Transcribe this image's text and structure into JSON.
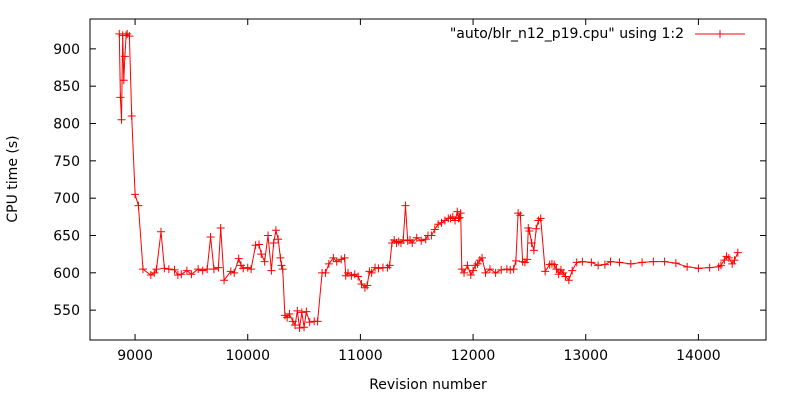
{
  "chart_data": {
    "type": "line",
    "title": "",
    "xlabel": "Revision number",
    "ylabel": "CPU time (s)",
    "xlim": [
      8600,
      14600
    ],
    "ylim": [
      510,
      940
    ],
    "x_ticks": [
      9000,
      10000,
      11000,
      12000,
      13000,
      14000
    ],
    "y_ticks": [
      550,
      600,
      650,
      700,
      750,
      800,
      850,
      900
    ],
    "grid": false,
    "legend_position": "top-right",
    "series": [
      {
        "name": "\"auto/blr_n12_p19.cpu\" using 1:2",
        "color": "#ff0000",
        "marker": "plus",
        "x": [
          8860,
          8870,
          8880,
          8890,
          8900,
          8910,
          8920,
          8930,
          8950,
          8970,
          9000,
          9030,
          9070,
          9140,
          9170,
          9190,
          9230,
          9260,
          9300,
          9350,
          9380,
          9410,
          9460,
          9500,
          9560,
          9600,
          9640,
          9670,
          9700,
          9740,
          9760,
          9790,
          9850,
          9880,
          9920,
          9940,
          9960,
          10000,
          10030,
          10070,
          10100,
          10120,
          10150,
          10180,
          10210,
          10230,
          10250,
          10270,
          10290,
          10300,
          10310,
          10330,
          10350,
          10370,
          10400,
          10420,
          10440,
          10460,
          10480,
          10500,
          10520,
          10550,
          10590,
          10620,
          10660,
          10690,
          10720,
          10760,
          10790,
          10830,
          10860,
          10870,
          10890,
          10920,
          10950,
          10980,
          11010,
          11040,
          11060,
          11080,
          11100,
          11130,
          11160,
          11200,
          11240,
          11260,
          11280,
          11300,
          11320,
          11340,
          11360,
          11380,
          11400,
          11420,
          11440,
          11460,
          11500,
          11540,
          11580,
          11600,
          11630,
          11660,
          11690,
          11720,
          11750,
          11780,
          11800,
          11820,
          11840,
          11860,
          11870,
          11880,
          11890,
          11900,
          11920,
          11950,
          11980,
          12000,
          12020,
          12040,
          12060,
          12080,
          12110,
          12150,
          12200,
          12250,
          12300,
          12330,
          12360,
          12380,
          12400,
          12420,
          12440,
          12460,
          12480,
          12490,
          12500,
          12520,
          12540,
          12560,
          12580,
          12600,
          12640,
          12680,
          12700,
          12720,
          12740,
          12760,
          12780,
          12800,
          12820,
          12850,
          12880,
          12920,
          12970,
          13050,
          13110,
          13170,
          13220,
          13300,
          13400,
          13500,
          13600,
          13700,
          13800,
          13900,
          14000,
          14100,
          14180,
          14200,
          14230,
          14250,
          14270,
          14300,
          14320,
          14350
        ],
        "y": [
          920,
          835,
          805,
          918,
          858,
          890,
          918,
          920,
          917,
          810,
          705,
          690,
          605,
          597,
          600,
          605,
          655,
          606,
          605,
          604,
          597,
          598,
          603,
          598,
          605,
          603,
          605,
          648,
          605,
          607,
          660,
          590,
          602,
          600,
          619,
          610,
          606,
          607,
          605,
          637,
          638,
          625,
          615,
          650,
          603,
          640,
          657,
          645,
          620,
          610,
          605,
          543,
          540,
          545,
          535,
          530,
          549,
          526,
          547,
          527,
          548,
          534,
          535,
          535,
          600,
          600,
          612,
          620,
          615,
          618,
          620,
          596,
          600,
          596,
          598,
          595,
          585,
          580,
          583,
          602,
          600,
          607,
          606,
          607,
          607,
          610,
          640,
          644,
          640,
          642,
          640,
          644,
          690,
          643,
          644,
          640,
          647,
          643,
          645,
          650,
          650,
          658,
          665,
          667,
          670,
          673,
          673,
          675,
          670,
          682,
          673,
          674,
          680,
          605,
          600,
          610,
          597,
          603,
          610,
          612,
          617,
          620,
          600,
          605,
          600,
          604,
          605,
          604,
          605,
          616,
          680,
          677,
          615,
          614,
          618,
          660,
          656,
          640,
          630,
          659,
          670,
          673,
          602,
          611,
          612,
          611,
          605,
          598,
          604,
          600,
          595,
          590,
          603,
          614,
          615,
          614,
          610,
          611,
          615,
          614,
          612,
          614,
          615,
          615,
          613,
          608,
          606,
          607,
          608,
          610,
          617,
          622,
          620,
          612,
          617,
          627
        ]
      }
    ]
  }
}
